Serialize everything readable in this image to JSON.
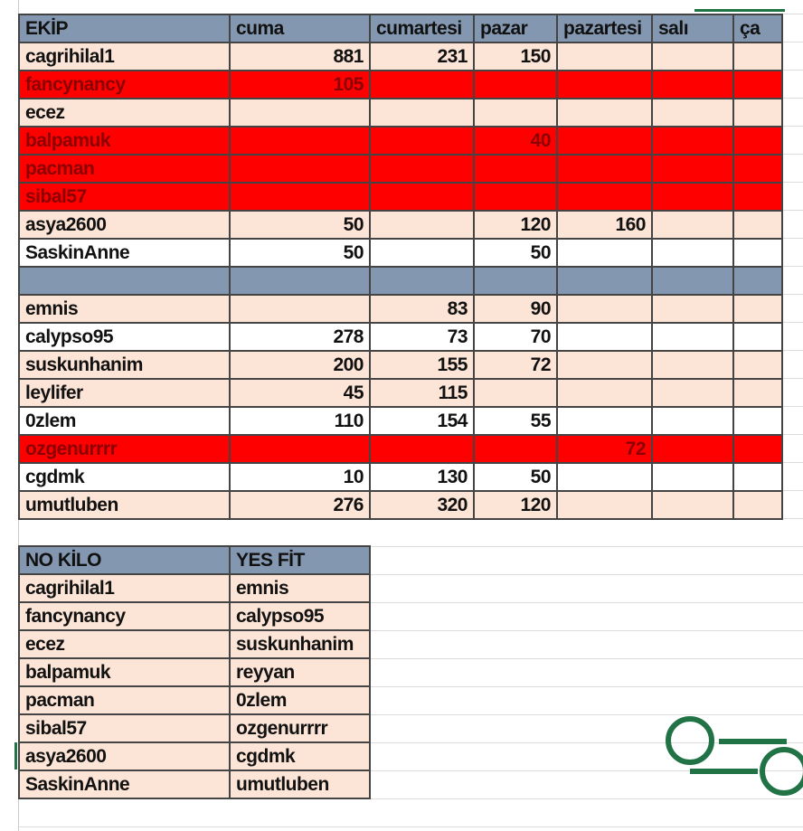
{
  "table1": {
    "headers": [
      "EKİP",
      "cuma",
      "cumartesi",
      "pazar",
      "pazartesi",
      "salı",
      "ça"
    ],
    "rows": [
      {
        "style": "peach",
        "cells": [
          "cagrihilal1",
          "881",
          "231",
          "150",
          "",
          "",
          ""
        ]
      },
      {
        "style": "red",
        "cells": [
          "fancynancy",
          "105",
          "",
          "",
          "",
          "",
          ""
        ]
      },
      {
        "style": "peach",
        "cells": [
          "ecez",
          "",
          "",
          "",
          "",
          "",
          ""
        ]
      },
      {
        "style": "red",
        "cells": [
          "balpamuk",
          "",
          "",
          "40",
          "",
          "",
          ""
        ]
      },
      {
        "style": "red",
        "cells": [
          "pacman",
          "",
          "",
          "",
          "",
          "",
          ""
        ]
      },
      {
        "style": "red",
        "cells": [
          "sibal57",
          "",
          "",
          "",
          "",
          "",
          ""
        ]
      },
      {
        "style": "peach",
        "cells": [
          "asya2600",
          "50",
          "",
          "120",
          "160",
          "",
          ""
        ]
      },
      {
        "style": "white",
        "cells": [
          "SaskinAnne",
          "50",
          "",
          "50",
          "",
          "",
          ""
        ]
      },
      {
        "style": "blank",
        "cells": [
          "",
          "",
          "",
          "",
          "",
          "",
          ""
        ]
      },
      {
        "style": "peach",
        "cells": [
          "emnis",
          "",
          "83",
          "90",
          "",
          "",
          ""
        ]
      },
      {
        "style": "white",
        "cells": [
          "calypso95",
          "278",
          "73",
          "70",
          "",
          "",
          ""
        ]
      },
      {
        "style": "peach",
        "cells": [
          "suskunhanim",
          "200",
          "155",
          "72",
          "",
          "",
          ""
        ]
      },
      {
        "style": "peach",
        "cells": [
          "leylifer",
          "45",
          "115",
          "",
          "",
          "",
          ""
        ]
      },
      {
        "style": "white",
        "cells": [
          "0zlem",
          "110",
          "154",
          "55",
          "",
          "",
          ""
        ]
      },
      {
        "style": "red",
        "cells": [
          "ozgenurrrr",
          "",
          "",
          "",
          "72",
          "",
          ""
        ]
      },
      {
        "style": "white",
        "cells": [
          "cgdmk",
          "10",
          "130",
          "50",
          "",
          "",
          ""
        ]
      },
      {
        "style": "peach",
        "cells": [
          "umutluben",
          "276",
          "320",
          "120",
          "",
          "",
          ""
        ]
      }
    ]
  },
  "table2": {
    "headers": [
      "NO KİLO",
      "YES FİT"
    ],
    "rows": [
      [
        "cagrihilal1",
        "emnis"
      ],
      [
        "fancynancy",
        "calypso95"
      ],
      [
        "ecez",
        "suskunhanim"
      ],
      [
        "balpamuk",
        "reyyan"
      ],
      [
        "pacman",
        "0zlem"
      ],
      [
        "sibal57",
        "ozgenurrrr"
      ],
      [
        "asya2600",
        "cgdmk"
      ],
      [
        "SaskinAnne",
        "umutluben"
      ]
    ]
  },
  "colors": {
    "header": "#8497b0",
    "peach": "#fce4d6",
    "red": "#ff0000",
    "accent": "#217346"
  },
  "icons": {
    "logo": "toggle-circles-icon"
  }
}
